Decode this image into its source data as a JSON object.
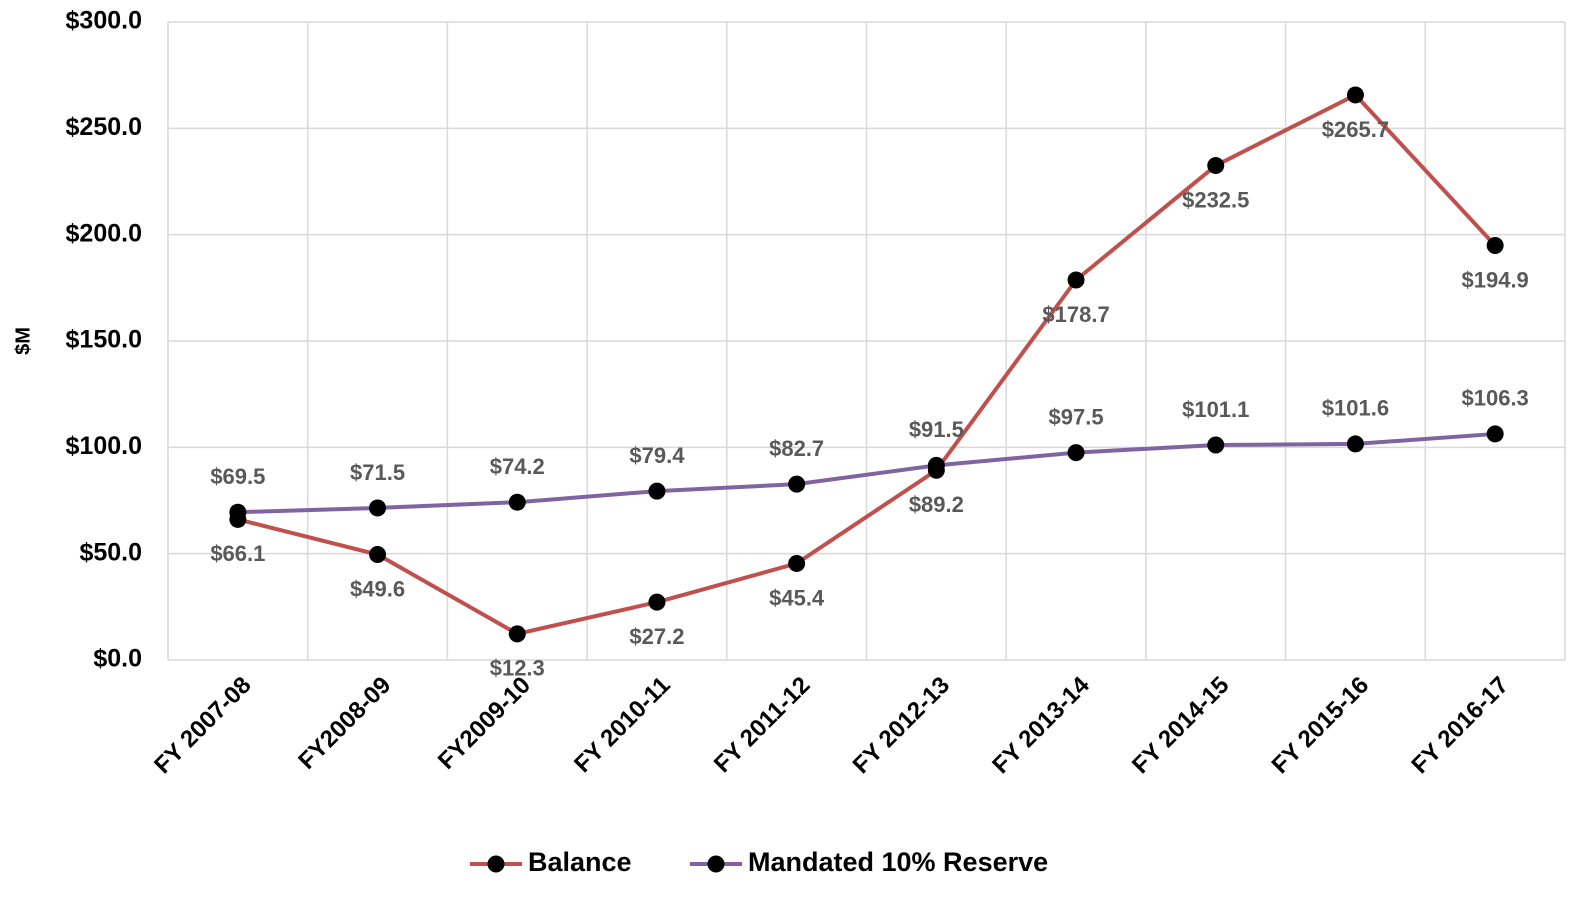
{
  "chart_data": {
    "type": "line",
    "y_label": "$M",
    "categories": [
      "FY 2007-08",
      "FY2008-09",
      "FY2009-10",
      "FY 2010-11",
      "FY 2011-12",
      "FY 2012-13",
      "FY 2013-14",
      "FY 2014-15",
      "FY 2015-16",
      "FY 2016-17"
    ],
    "series": [
      {
        "name": "Balance",
        "color": "#c0504d",
        "marker_color": "#000000",
        "values": [
          66.1,
          49.6,
          12.3,
          27.2,
          45.4,
          89.2,
          178.7,
          232.5,
          265.7,
          194.9
        ],
        "value_labels": [
          "$66.1",
          "$49.6",
          "$12.3",
          "$27.2",
          "$45.4",
          "$89.2",
          "$178.7",
          "$232.5",
          "$265.7",
          "$194.9"
        ]
      },
      {
        "name": "Mandated 10% Reserve",
        "color": "#8064a2",
        "marker_color": "#000000",
        "values": [
          69.5,
          71.5,
          74.2,
          79.4,
          82.7,
          91.5,
          97.5,
          101.1,
          101.6,
          106.3
        ],
        "value_labels": [
          "$69.5",
          "$71.5",
          "$74.2",
          "$79.4",
          "$82.7",
          "$91.5",
          "$97.5",
          "$101.1",
          "$101.6",
          "$106.3"
        ]
      }
    ],
    "ylim": [
      0,
      300
    ],
    "yticks": [
      {
        "value": 0,
        "label": "$0.0"
      },
      {
        "value": 50,
        "label": "$50.0"
      },
      {
        "value": 100,
        "label": "$100.0"
      },
      {
        "value": 150,
        "label": "$150.0"
      },
      {
        "value": 200,
        "label": "$200.0"
      },
      {
        "value": 250,
        "label": "$250.0"
      },
      {
        "value": 300,
        "label": "$300.0"
      }
    ],
    "grid": true,
    "legend": "bottom"
  }
}
